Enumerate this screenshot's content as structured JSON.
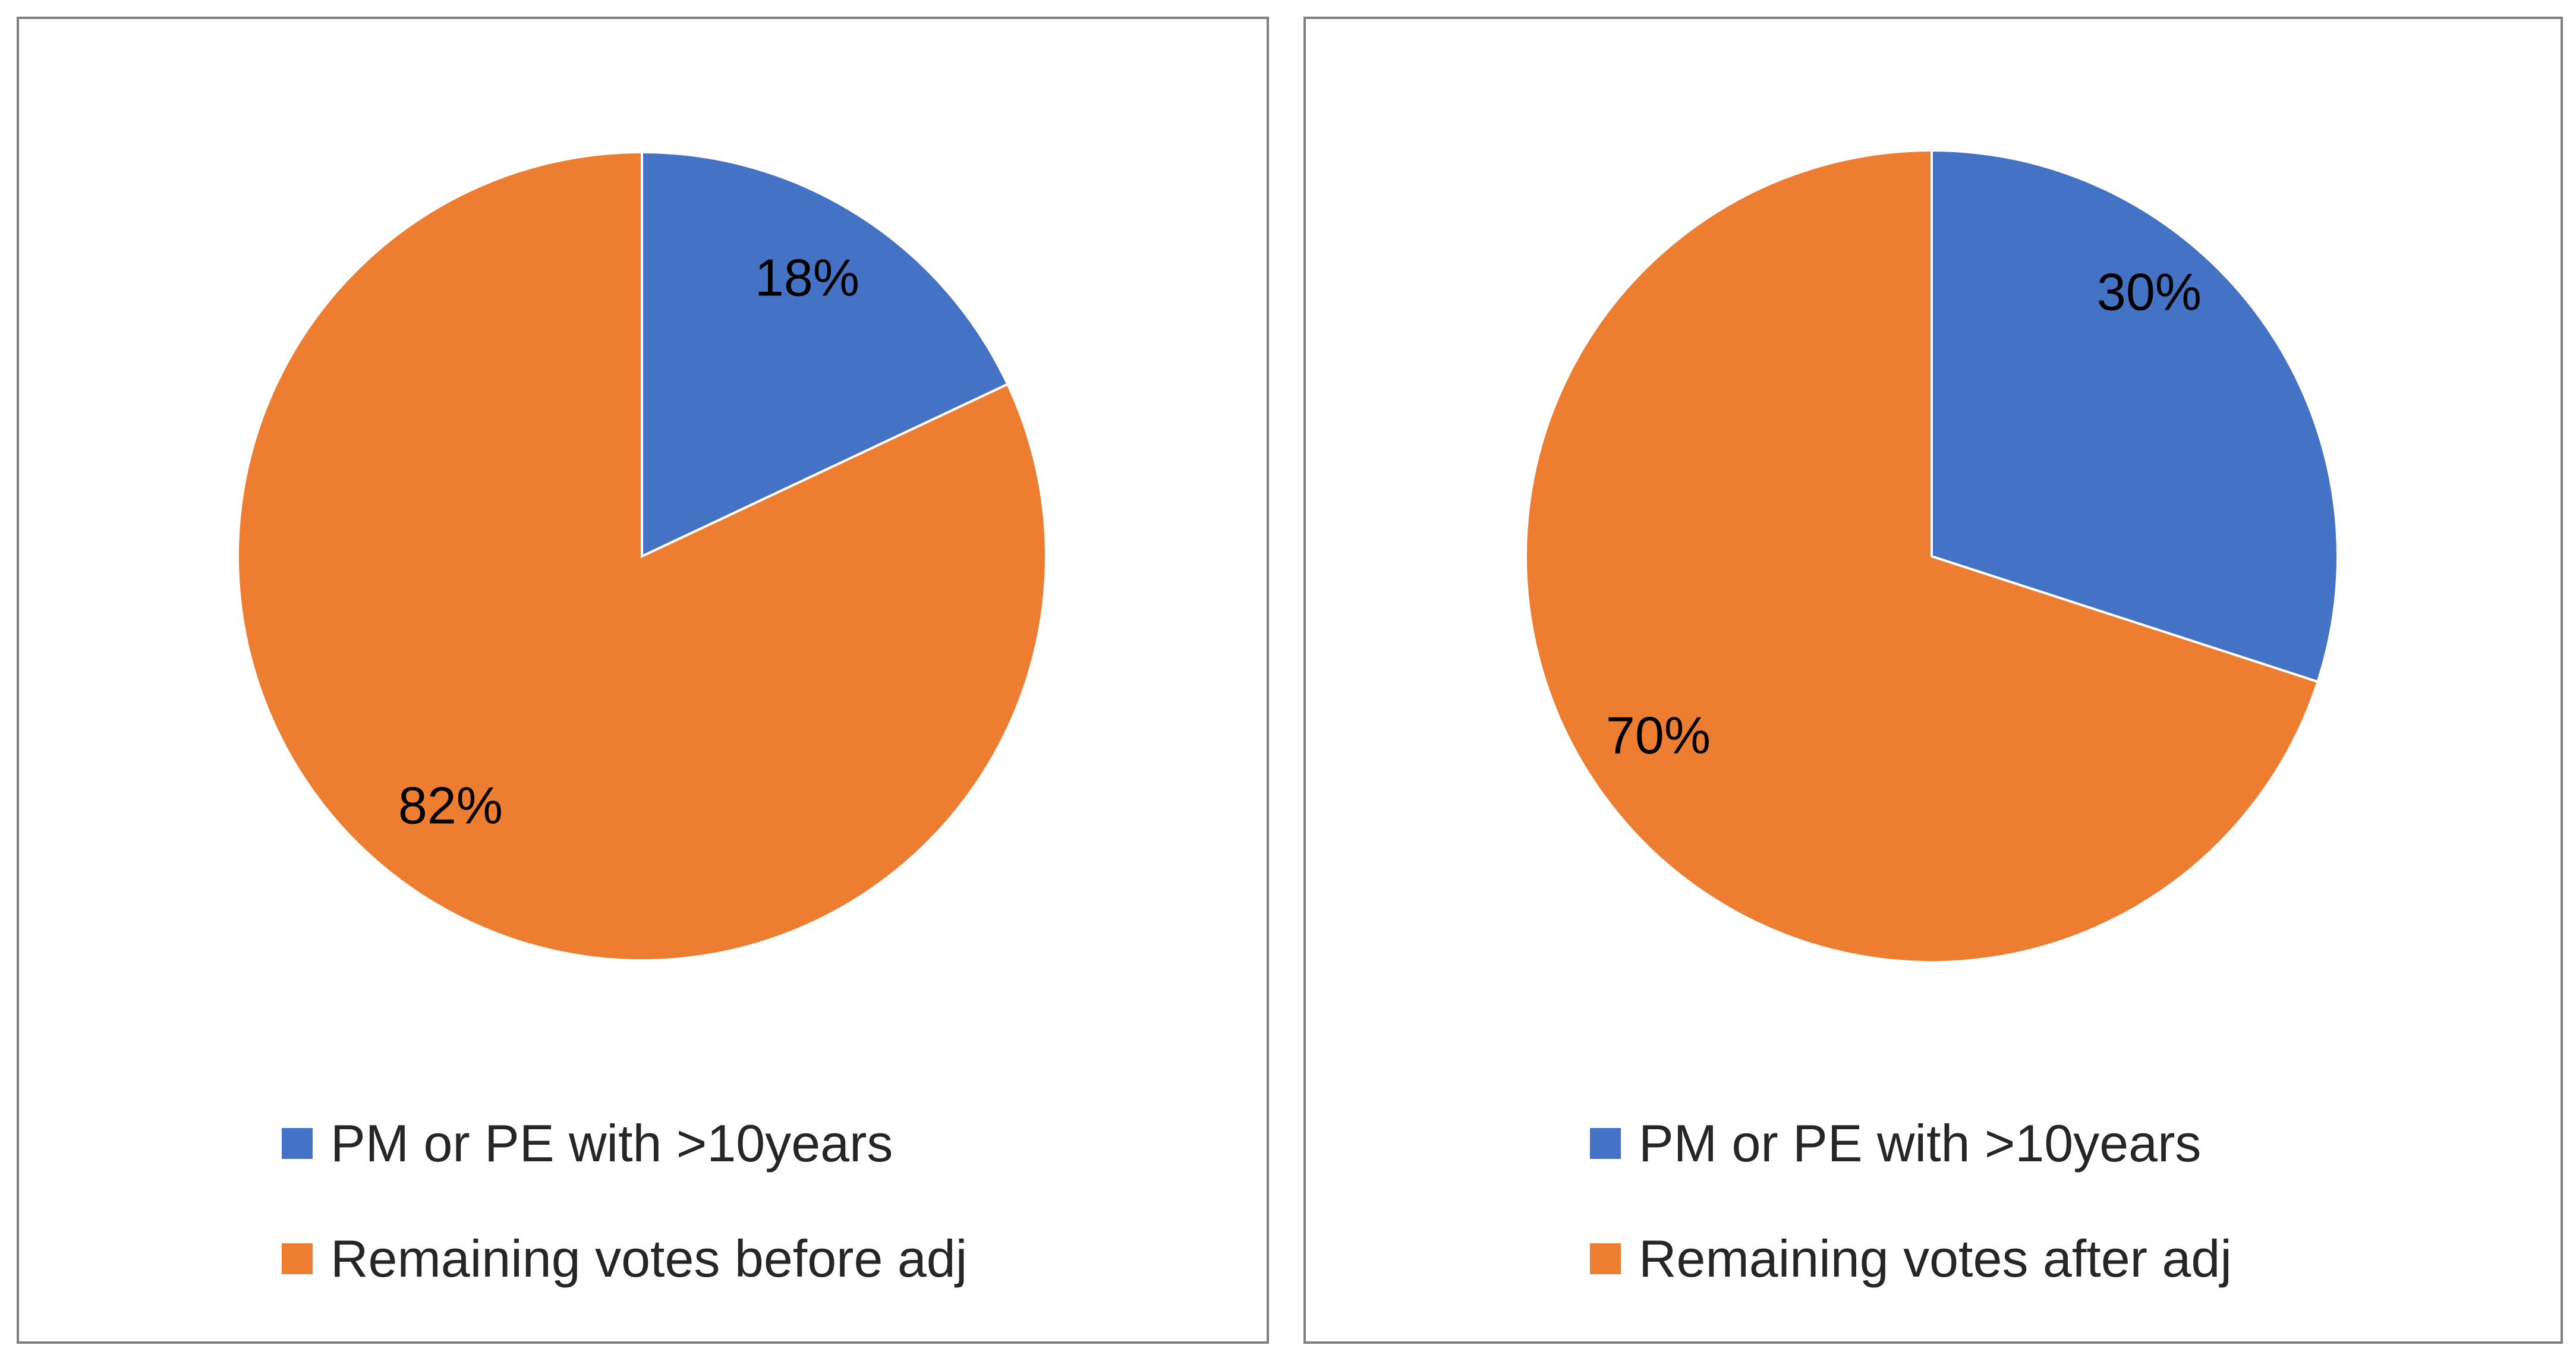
{
  "chart_data": [
    {
      "type": "pie",
      "categories": [
        "PM or PE with >10years",
        "Remaining votes before adj"
      ],
      "values": [
        18,
        82
      ],
      "data_labels": [
        "18%",
        "82%"
      ],
      "colors": [
        "#4472C4",
        "#ED7D31"
      ],
      "start_angle": "12 o'clock",
      "direction": "clockwise",
      "legend_position": "bottom"
    },
    {
      "type": "pie",
      "categories": [
        "PM or PE with >10years",
        "Remaining votes after adj"
      ],
      "values": [
        30,
        70
      ],
      "data_labels": [
        "30%",
        "70%"
      ],
      "colors": [
        "#4472C4",
        "#ED7D31"
      ],
      "start_angle": "12 o'clock",
      "direction": "clockwise",
      "legend_position": "bottom"
    }
  ]
}
